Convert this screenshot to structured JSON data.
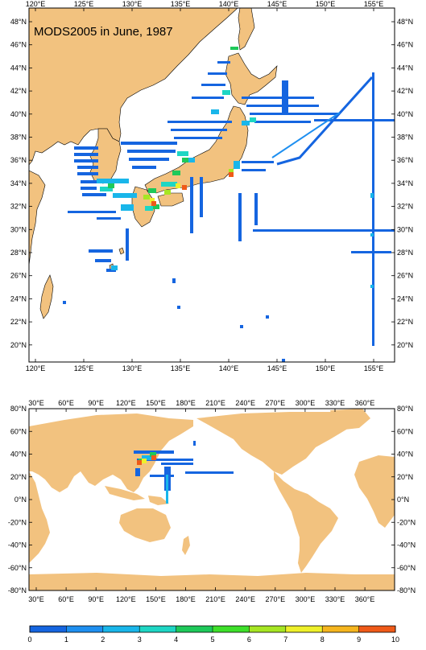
{
  "map_title": "MODS2005 in June, 1987",
  "top_map": {
    "lon_labels": [
      "120°E",
      "125°E",
      "130°E",
      "135°E",
      "140°E",
      "145°E",
      "150°E",
      "155°E"
    ],
    "lat_labels": [
      "48°N",
      "46°N",
      "44°N",
      "42°N",
      "40°N",
      "38°N",
      "36°N",
      "34°N",
      "32°N",
      "30°N",
      "28°N",
      "26°N",
      "24°N",
      "22°N",
      "20°N"
    ]
  },
  "bottom_map": {
    "lon_labels": [
      "30°E",
      "60°E",
      "90°E",
      "120°E",
      "150°E",
      "180°E",
      "210°E",
      "240°E",
      "270°E",
      "300°E",
      "330°E",
      "360°E"
    ],
    "lat_labels": [
      "80°N",
      "60°N",
      "40°N",
      "20°N",
      "0°N",
      "-20°N",
      "-40°N",
      "-60°N",
      "-80°N"
    ]
  },
  "colorbar": {
    "labels": [
      "0",
      "1",
      "2",
      "3",
      "4",
      "5",
      "6",
      "7",
      "8",
      "9",
      "10"
    ],
    "colors": [
      "#1565e0",
      "#1e8ff0",
      "#19b6ea",
      "#1ed6c4",
      "#1ec95a",
      "#3ee02a",
      "#a6e623",
      "#eef02a",
      "#f5b51e",
      "#ef5a18"
    ]
  },
  "colors": {
    "land": "#f2c27f",
    "ocean": "#ffffff",
    "coast": "#000000"
  }
}
